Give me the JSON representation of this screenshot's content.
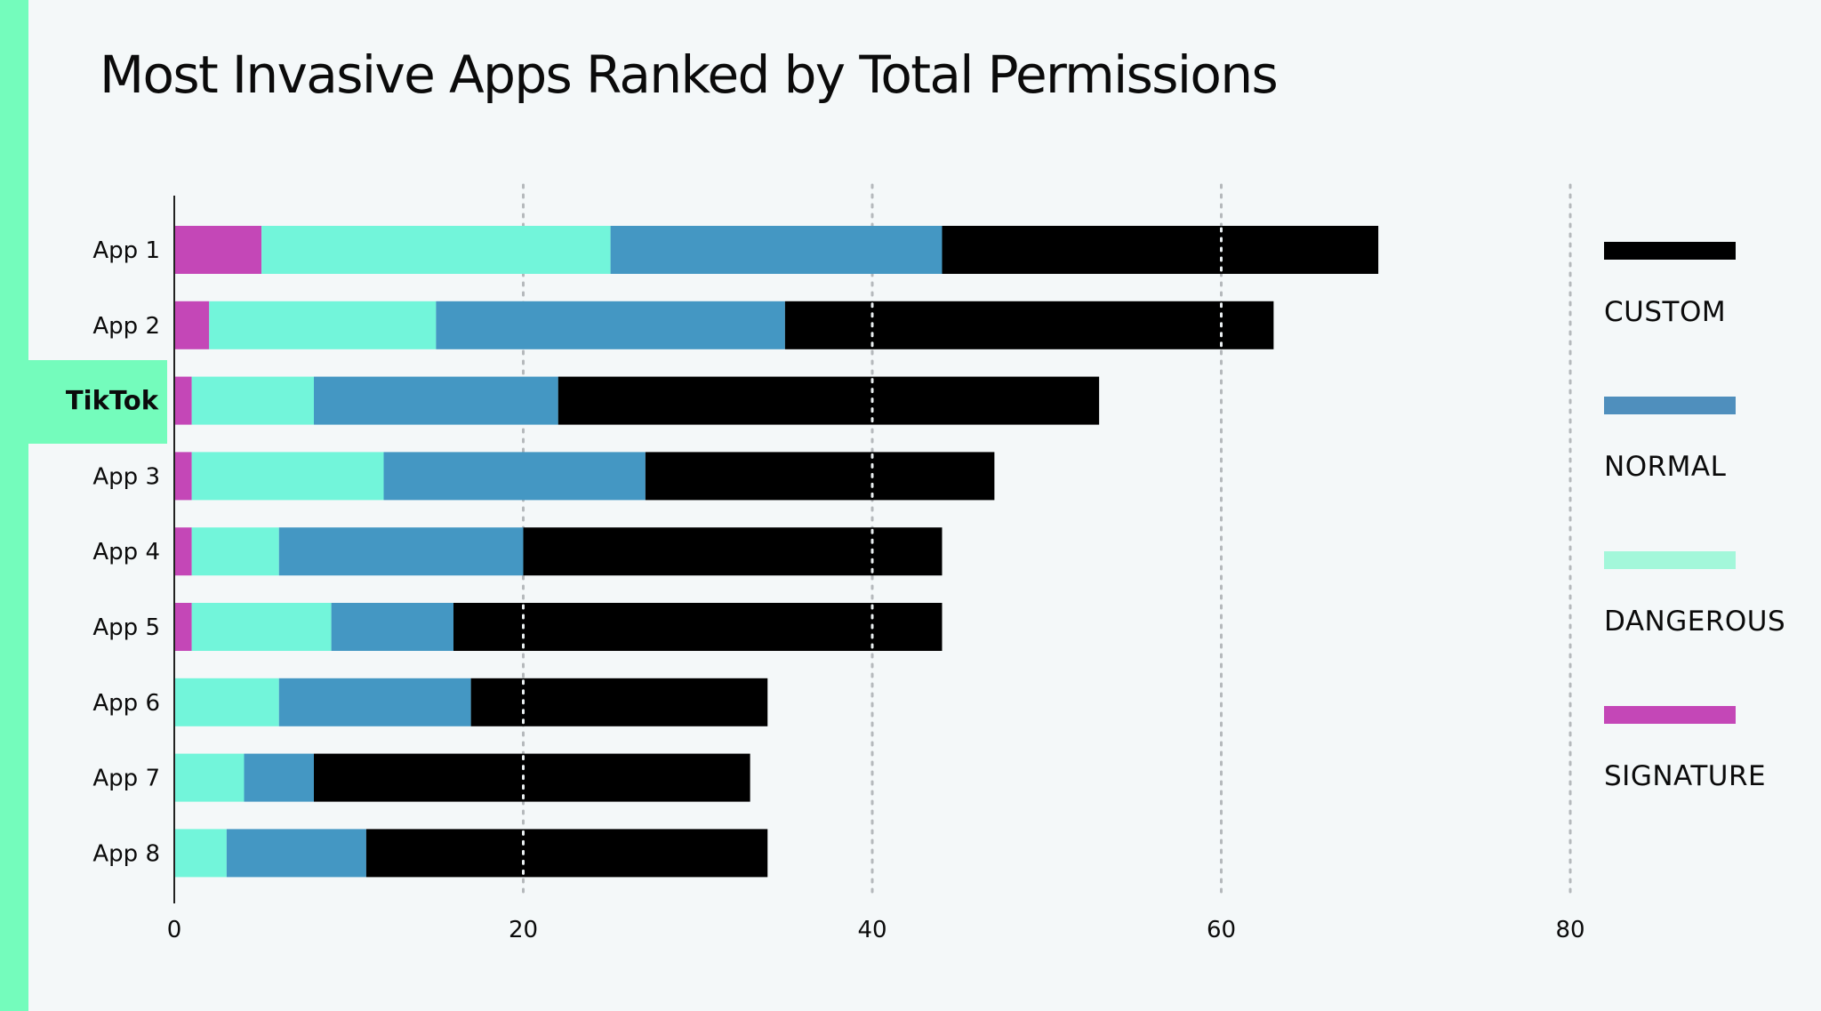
{
  "colors": {
    "accent": "#74fcbc",
    "custom": "#000000",
    "normal": "#4497c3",
    "dangerous": "#72f5da",
    "signature": "#c447b7",
    "legend_normal": "#4f8fbd",
    "legend_dangerous": "#a3f7da",
    "legend_signature": "#c447b7"
  },
  "chart_data": {
    "type": "bar",
    "orientation": "horizontal",
    "stacked": true,
    "title": "Most Invasive Apps Ranked by Total Permissions",
    "highlight": "TikTok",
    "categories": [
      "App 1",
      "App 2",
      "TikTok",
      "App 3",
      "App 4",
      "App 5",
      "App 6",
      "App 7",
      "App 8"
    ],
    "series": [
      {
        "name": "SIGNATURE",
        "key": "signature",
        "values": [
          5,
          2,
          1,
          1,
          1,
          1,
          0,
          0,
          0
        ]
      },
      {
        "name": "DANGEROUS",
        "key": "dangerous",
        "values": [
          20,
          13,
          7,
          11,
          5,
          8,
          6,
          4,
          3
        ]
      },
      {
        "name": "NORMAL",
        "key": "normal",
        "values": [
          19,
          20,
          14,
          15,
          14,
          7,
          11,
          4,
          8
        ]
      },
      {
        "name": "CUSTOM",
        "key": "custom",
        "values": [
          25,
          28,
          31,
          20,
          24,
          28,
          17,
          25,
          23
        ]
      }
    ],
    "legend": [
      "CUSTOM",
      "NORMAL",
      "DANGEROUS",
      "SIGNATURE"
    ],
    "legend_position": "right",
    "xlim": [
      0,
      80
    ],
    "xticks": [
      0,
      20,
      40,
      60,
      80
    ],
    "grid": "vertical dotted",
    "xlabel": "",
    "ylabel": ""
  }
}
